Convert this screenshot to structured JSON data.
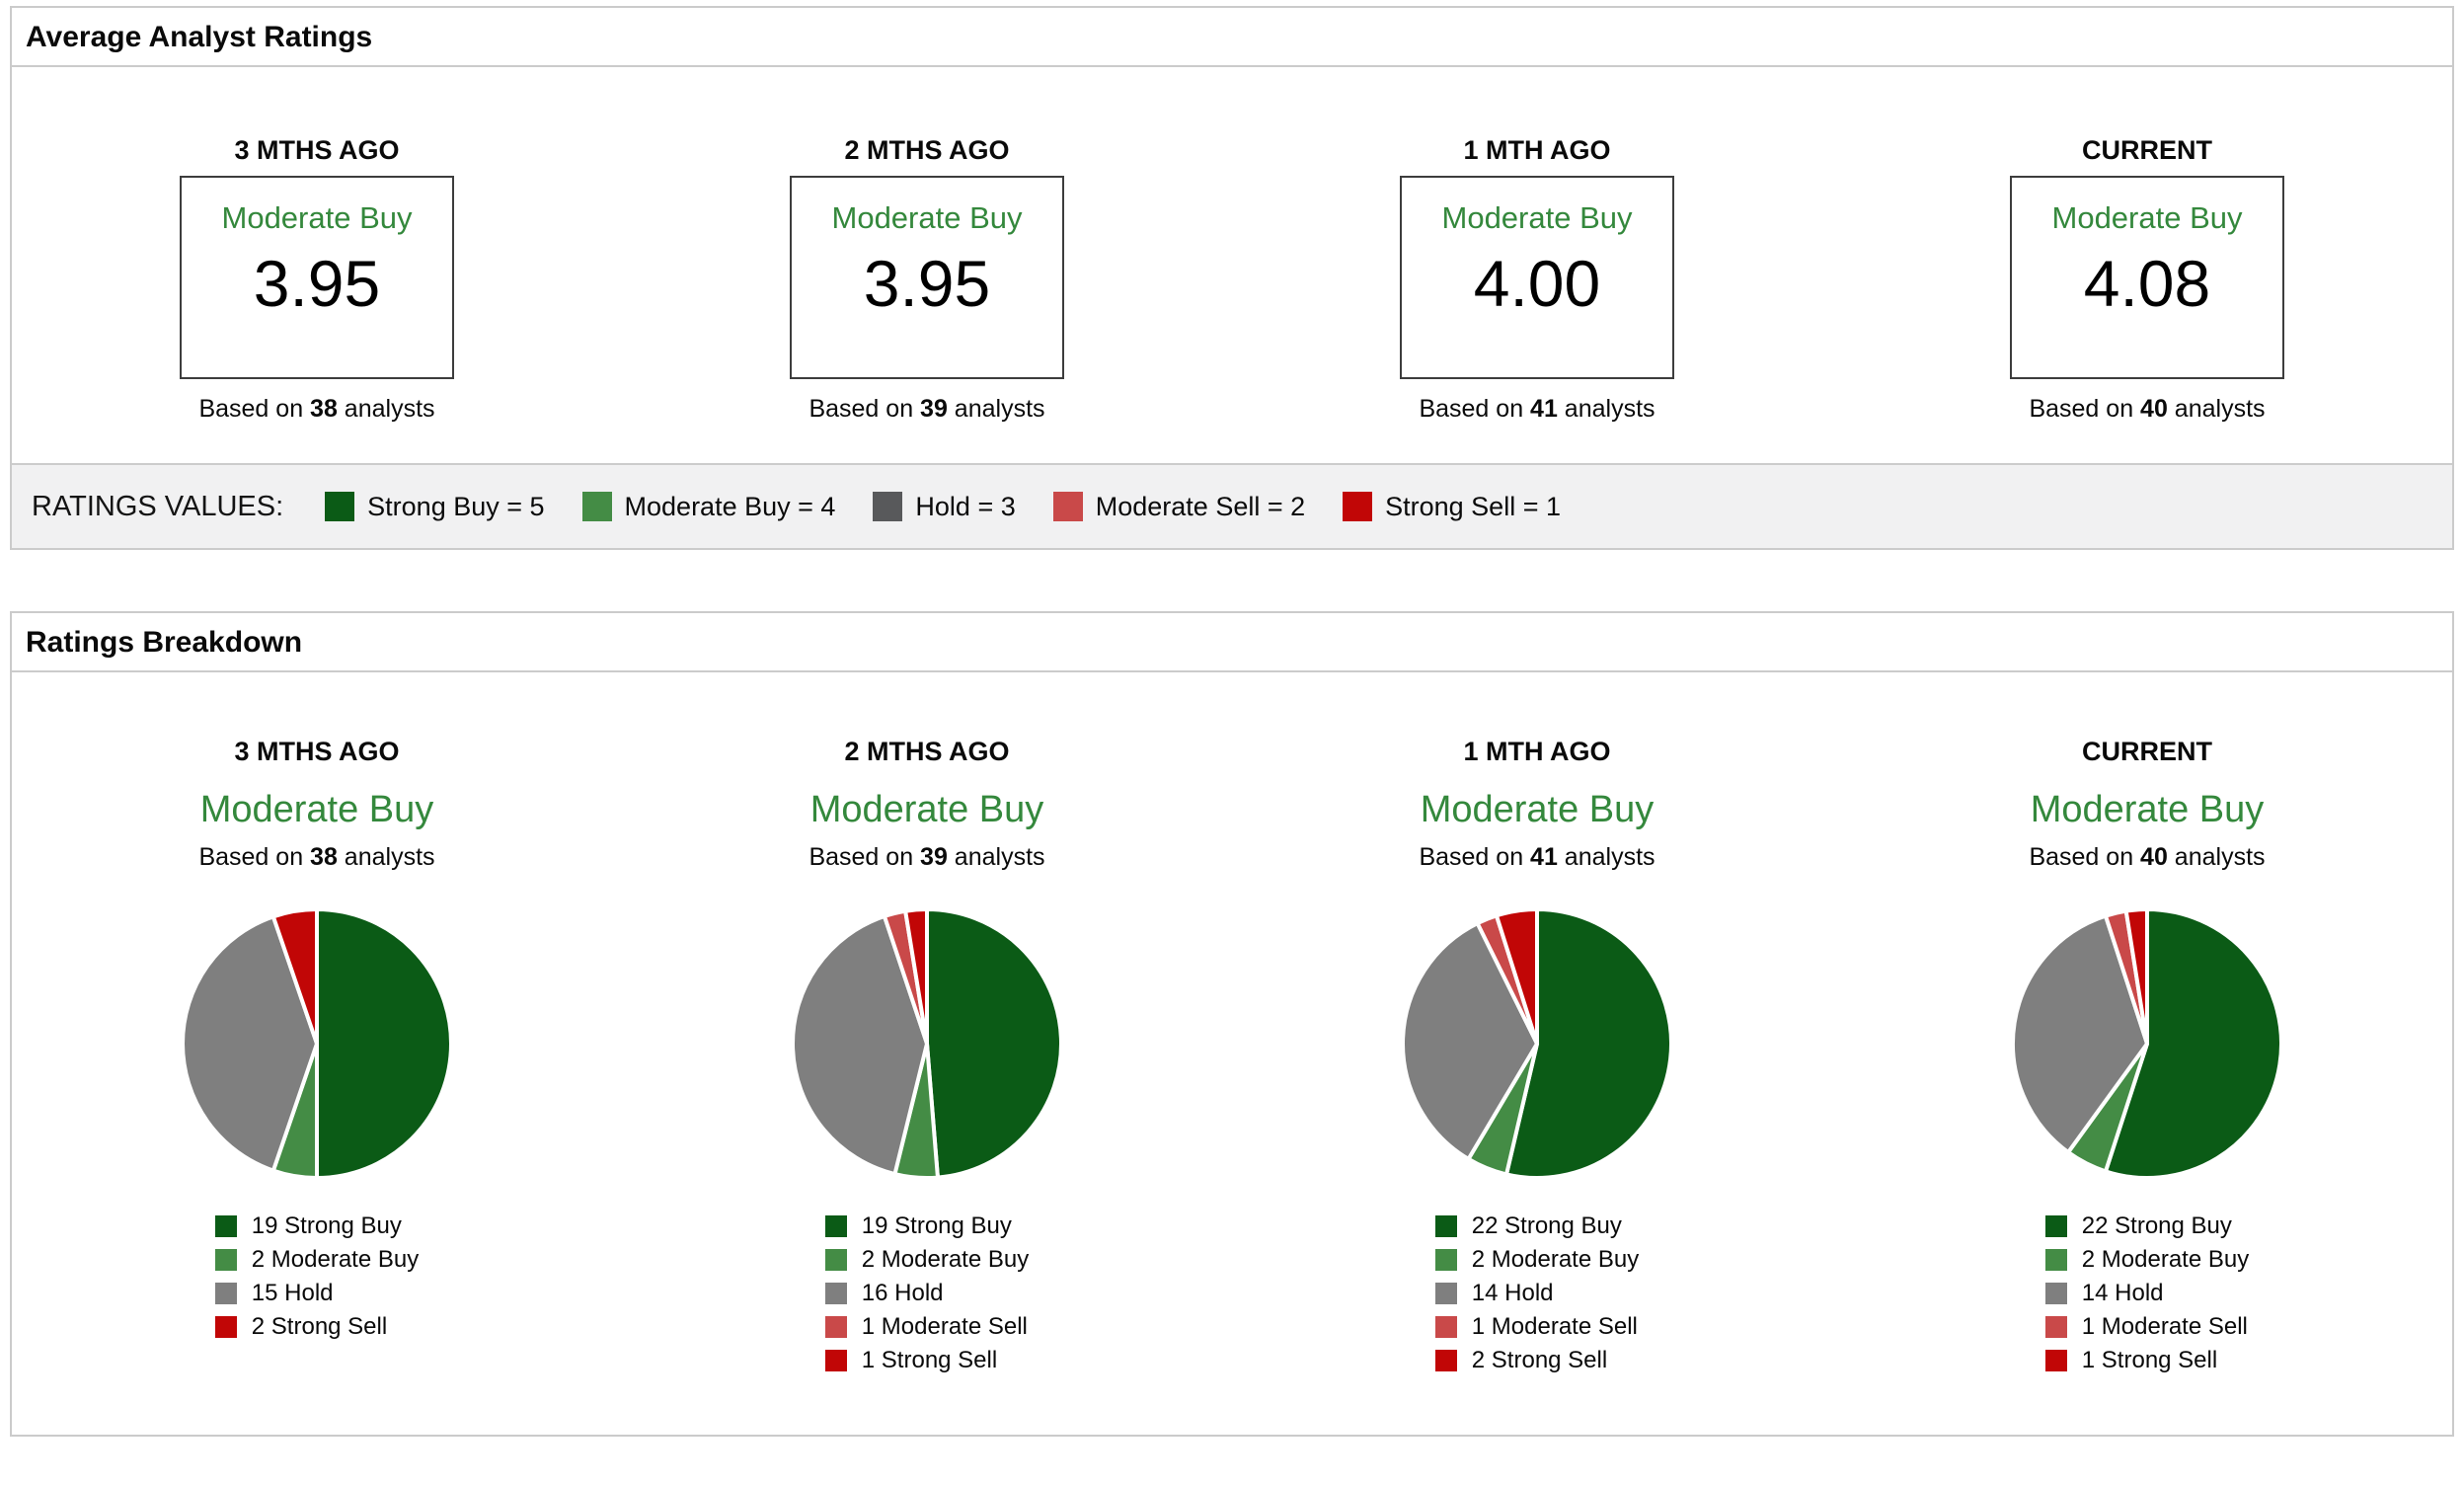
{
  "colors": {
    "strong_buy": "#0b5b16",
    "moderate_buy": "#448c45",
    "hold": "#7f7f7f",
    "hold_bar": "#58595b",
    "moderate_sell": "#c94949",
    "strong_sell": "#c10606",
    "rating_text_green": "#34883c",
    "panel_border": "#cbcbcb",
    "bar_background": "#f1f1f2"
  },
  "average_panel": {
    "title": "Average Analyst Ratings",
    "columns": [
      {
        "period": "3 MTHS AGO",
        "rating": "Moderate Buy",
        "value": "3.95",
        "based_on_prefix": "Based on",
        "analyst_count": "38",
        "based_on_suffix": "analysts"
      },
      {
        "period": "2 MTHS AGO",
        "rating": "Moderate Buy",
        "value": "3.95",
        "based_on_prefix": "Based on",
        "analyst_count": "39",
        "based_on_suffix": "analysts"
      },
      {
        "period": "1 MTH AGO",
        "rating": "Moderate Buy",
        "value": "4.00",
        "based_on_prefix": "Based on",
        "analyst_count": "41",
        "based_on_suffix": "analysts"
      },
      {
        "period": "CURRENT",
        "rating": "Moderate Buy",
        "value": "4.08",
        "based_on_prefix": "Based on",
        "analyst_count": "40",
        "based_on_suffix": "analysts"
      }
    ],
    "ratings_values_legend": {
      "label": "RATINGS VALUES:",
      "items": [
        {
          "label": "Strong Buy = 5",
          "color_key": "strong_buy"
        },
        {
          "label": "Moderate Buy = 4",
          "color_key": "moderate_buy"
        },
        {
          "label": "Hold = 3",
          "color_key": "hold_bar"
        },
        {
          "label": "Moderate Sell = 2",
          "color_key": "moderate_sell"
        },
        {
          "label": "Strong Sell = 1",
          "color_key": "strong_sell"
        }
      ]
    }
  },
  "breakdown_panel": {
    "title": "Ratings Breakdown",
    "columns": [
      {
        "period": "3 MTHS AGO",
        "rating": "Moderate Buy",
        "based_on_prefix": "Based on",
        "analyst_count": "38",
        "based_on_suffix": "analysts",
        "slices": [
          {
            "count": 19,
            "label": "Strong Buy",
            "color_key": "strong_buy"
          },
          {
            "count": 2,
            "label": "Moderate Buy",
            "color_key": "moderate_buy"
          },
          {
            "count": 15,
            "label": "Hold",
            "color_key": "hold"
          },
          {
            "count": 2,
            "label": "Strong Sell",
            "color_key": "strong_sell"
          }
        ]
      },
      {
        "period": "2 MTHS AGO",
        "rating": "Moderate Buy",
        "based_on_prefix": "Based on",
        "analyst_count": "39",
        "based_on_suffix": "analysts",
        "slices": [
          {
            "count": 19,
            "label": "Strong Buy",
            "color_key": "strong_buy"
          },
          {
            "count": 2,
            "label": "Moderate Buy",
            "color_key": "moderate_buy"
          },
          {
            "count": 16,
            "label": "Hold",
            "color_key": "hold"
          },
          {
            "count": 1,
            "label": "Moderate Sell",
            "color_key": "moderate_sell"
          },
          {
            "count": 1,
            "label": "Strong Sell",
            "color_key": "strong_sell"
          }
        ]
      },
      {
        "period": "1 MTH AGO",
        "rating": "Moderate Buy",
        "based_on_prefix": "Based on",
        "analyst_count": "41",
        "based_on_suffix": "analysts",
        "slices": [
          {
            "count": 22,
            "label": "Strong Buy",
            "color_key": "strong_buy"
          },
          {
            "count": 2,
            "label": "Moderate Buy",
            "color_key": "moderate_buy"
          },
          {
            "count": 14,
            "label": "Hold",
            "color_key": "hold"
          },
          {
            "count": 1,
            "label": "Moderate Sell",
            "color_key": "moderate_sell"
          },
          {
            "count": 2,
            "label": "Strong Sell",
            "color_key": "strong_sell"
          }
        ]
      },
      {
        "period": "CURRENT",
        "rating": "Moderate Buy",
        "based_on_prefix": "Based on",
        "analyst_count": "40",
        "based_on_suffix": "analysts",
        "slices": [
          {
            "count": 22,
            "label": "Strong Buy",
            "color_key": "strong_buy"
          },
          {
            "count": 2,
            "label": "Moderate Buy",
            "color_key": "moderate_buy"
          },
          {
            "count": 14,
            "label": "Hold",
            "color_key": "hold"
          },
          {
            "count": 1,
            "label": "Moderate Sell",
            "color_key": "moderate_sell"
          },
          {
            "count": 1,
            "label": "Strong Sell",
            "color_key": "strong_sell"
          }
        ]
      }
    ]
  },
  "chart_data": [
    {
      "type": "table",
      "title": "Average Analyst Ratings",
      "columns": [
        "3 MTHS AGO",
        "2 MTHS AGO",
        "1 MTH AGO",
        "CURRENT"
      ],
      "rows": [
        [
          "Moderate Buy",
          "Moderate Buy",
          "Moderate Buy",
          "Moderate Buy"
        ],
        [
          3.95,
          3.95,
          4.0,
          4.08
        ],
        [
          "Based on 38 analysts",
          "Based on 39 analysts",
          "Based on 41 analysts",
          "Based on 40 analysts"
        ]
      ],
      "legend": [
        "Strong Buy = 5",
        "Moderate Buy = 4",
        "Hold = 3",
        "Moderate Sell = 2",
        "Strong Sell = 1"
      ]
    },
    {
      "type": "pie",
      "title": "3 MTHS AGO",
      "subtitle": "Moderate Buy",
      "analysts_total": 38,
      "labels": [
        "Strong Buy",
        "Moderate Buy",
        "Hold",
        "Strong Sell"
      ],
      "values": [
        19,
        2,
        15,
        2
      ],
      "colors": [
        "#0b5b16",
        "#448c45",
        "#7f7f7f",
        "#c10606"
      ],
      "start_angle": "12 o'clock",
      "direction": "clockwise",
      "legend_position": "bottom"
    },
    {
      "type": "pie",
      "title": "2 MTHS AGO",
      "subtitle": "Moderate Buy",
      "analysts_total": 39,
      "labels": [
        "Strong Buy",
        "Moderate Buy",
        "Hold",
        "Moderate Sell",
        "Strong Sell"
      ],
      "values": [
        19,
        2,
        16,
        1,
        1
      ],
      "colors": [
        "#0b5b16",
        "#448c45",
        "#7f7f7f",
        "#c94949",
        "#c10606"
      ],
      "start_angle": "12 o'clock",
      "direction": "clockwise",
      "legend_position": "bottom"
    },
    {
      "type": "pie",
      "title": "1 MTH AGO",
      "subtitle": "Moderate Buy",
      "analysts_total": 41,
      "labels": [
        "Strong Buy",
        "Moderate Buy",
        "Hold",
        "Moderate Sell",
        "Strong Sell"
      ],
      "values": [
        22,
        2,
        14,
        1,
        2
      ],
      "colors": [
        "#0b5b16",
        "#448c45",
        "#7f7f7f",
        "#c94949",
        "#c10606"
      ],
      "start_angle": "12 o'clock",
      "direction": "clockwise",
      "legend_position": "bottom"
    },
    {
      "type": "pie",
      "title": "CURRENT",
      "subtitle": "Moderate Buy",
      "analysts_total": 40,
      "labels": [
        "Strong Buy",
        "Moderate Buy",
        "Hold",
        "Moderate Sell",
        "Strong Sell"
      ],
      "values": [
        22,
        2,
        14,
        1,
        1
      ],
      "colors": [
        "#0b5b16",
        "#448c45",
        "#7f7f7f",
        "#c94949",
        "#c10606"
      ],
      "start_angle": "12 o'clock",
      "direction": "clockwise",
      "legend_position": "bottom"
    }
  ]
}
